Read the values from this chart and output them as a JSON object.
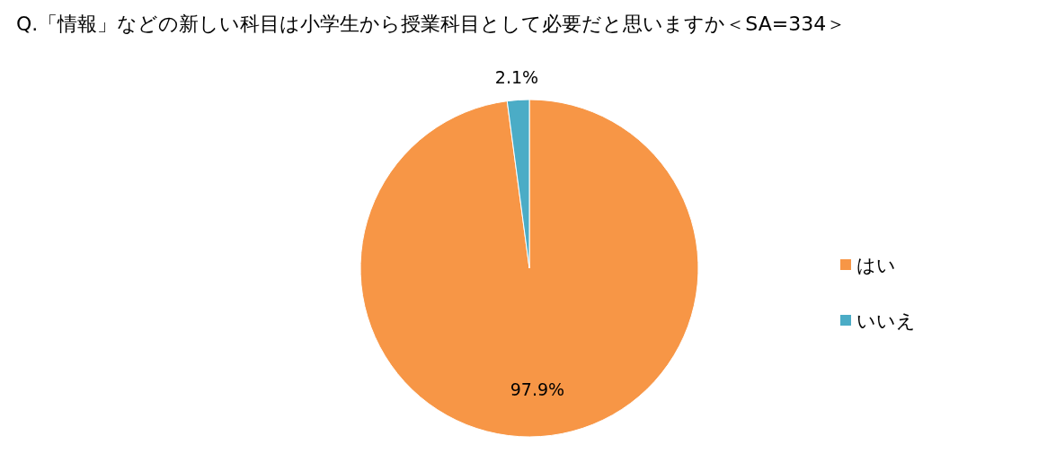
{
  "chart_data": {
    "type": "pie",
    "title": "Q.「情報」などの新しい科目は小学生から授業科目として必要だと思いますか＜SA=334＞",
    "categories": [
      "はい",
      "いいえ"
    ],
    "values": [
      97.9,
      2.1
    ],
    "colors": [
      "#f79646",
      "#4bacc6"
    ],
    "value_labels": [
      "97.9%",
      "2.1%"
    ],
    "legend": "right"
  }
}
